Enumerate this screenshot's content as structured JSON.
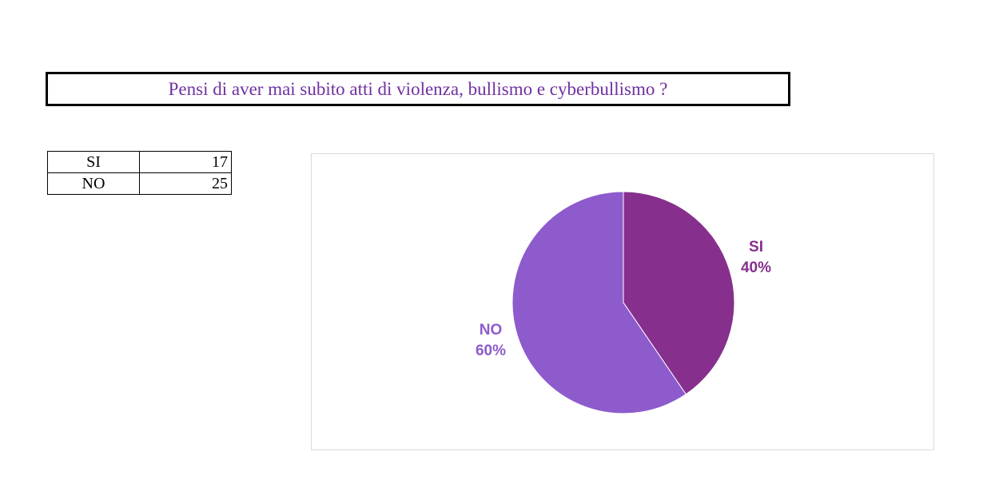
{
  "title": "Pensi di aver mai subito atti di violenza, bullismo e cyberbullismo ?",
  "table": {
    "rows": [
      {
        "label": "SI",
        "value": "17"
      },
      {
        "label": "NO",
        "value": "25"
      }
    ]
  },
  "chart_data": {
    "type": "pie",
    "categories": [
      "SI",
      "NO"
    ],
    "values": [
      17,
      25
    ],
    "percent_labels": [
      "40%",
      "60%"
    ],
    "colors": [
      "#862f8d",
      "#8e5bcd"
    ],
    "start_angle": "12 o'clock",
    "direction": "clockwise"
  }
}
